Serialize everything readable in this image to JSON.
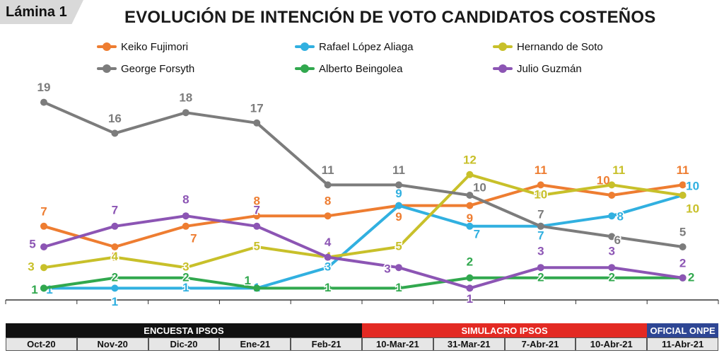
{
  "header": {
    "tab_label": "Lámina 1",
    "title": "EVOLUCIÓN DE INTENCIÓN DE VOTO CANDIDATOS COSTEÑOS"
  },
  "chart_data": {
    "type": "line",
    "title": "EVOLUCIÓN DE INTENCIÓN DE VOTO CANDIDATOS COSTEÑOS",
    "xlabel": "",
    "ylabel": "",
    "categories": [
      "Oct-20",
      "Nov-20",
      "Dic-20",
      "Ene-21",
      "Feb-21",
      "10-Mar-21",
      "31-Mar-21",
      "7-Abr-21",
      "10-Abr-21",
      "11-Abr-21"
    ],
    "ylim": [
      0,
      20
    ],
    "grid": false,
    "legend": "top",
    "series": [
      {
        "name": "Keiko Fujimori",
        "color": "#ee7d31",
        "values": [
          7,
          5,
          7,
          8,
          8,
          9,
          9,
          11,
          10,
          11
        ]
      },
      {
        "name": "Rafael López Aliaga",
        "color": "#31b0e0",
        "values": [
          1,
          1,
          1,
          1,
          3,
          9,
          7,
          7,
          8,
          10
        ]
      },
      {
        "name": "Hernando de Soto",
        "color": "#c8c02a",
        "values": [
          3,
          4,
          3,
          5,
          4,
          5,
          12,
          10,
          11,
          10
        ]
      },
      {
        "name": "George Forsyth",
        "color": "#7c7c7c",
        "values": [
          19,
          16,
          18,
          17,
          11,
          11,
          10,
          7,
          6,
          5
        ]
      },
      {
        "name": "Alberto Beingolea",
        "color": "#31a84e",
        "values": [
          1,
          2,
          2,
          1,
          1,
          1,
          2,
          2,
          2,
          2
        ]
      },
      {
        "name": "Julio Guzmán",
        "color": "#8c55b4",
        "values": [
          5,
          7,
          8,
          7,
          4,
          3,
          1,
          3,
          3,
          2
        ]
      }
    ],
    "periods": [
      {
        "label": "ENCUESTA IPSOS",
        "color": "#111111"
      },
      {
        "label": "SIMULACRO IPSOS",
        "color": "#e32a23"
      },
      {
        "label": "OFICIAL ONPE",
        "color": "#2e4694"
      }
    ]
  }
}
